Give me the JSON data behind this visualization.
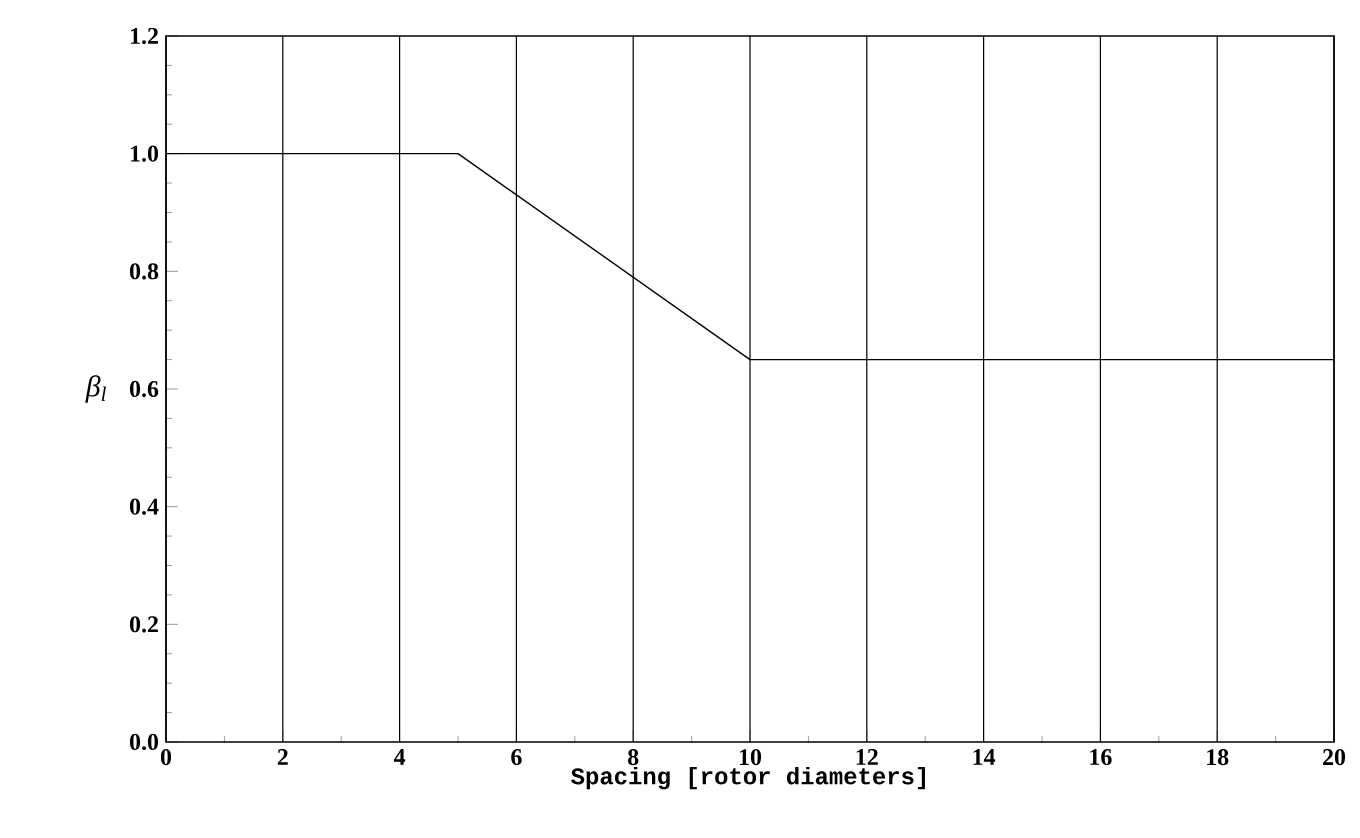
{
  "chart_data": {
    "type": "line",
    "xlabel": "Spacing [rotor diameters]",
    "ylabel": "β$_{l}$",
    "x": [
      0,
      5,
      10,
      20
    ],
    "series": [
      {
        "color": "#000000",
        "values": [
          1.0,
          1.0,
          0.65,
          0.65
        ]
      }
    ],
    "xlim": [
      0,
      20
    ],
    "xticks": [
      0,
      2,
      4,
      6,
      8,
      10,
      12,
      14,
      16,
      18,
      20
    ],
    "ylim": [
      0,
      1.2
    ],
    "yticks": [
      {
        "value": 0,
        "label": "0.0"
      },
      {
        "value": 0.2,
        "label": "0.2"
      },
      {
        "value": 0.4,
        "label": "0.4"
      },
      {
        "value": 0.6,
        "label": "0.6"
      },
      {
        "value": 0.8,
        "label": "0.8"
      },
      {
        "value": 1.0,
        "label": "1.0"
      },
      {
        "value": 1.2,
        "label": "1.2"
      }
    ],
    "grid": "x",
    "marker": "none",
    "line_style": "solid"
  }
}
